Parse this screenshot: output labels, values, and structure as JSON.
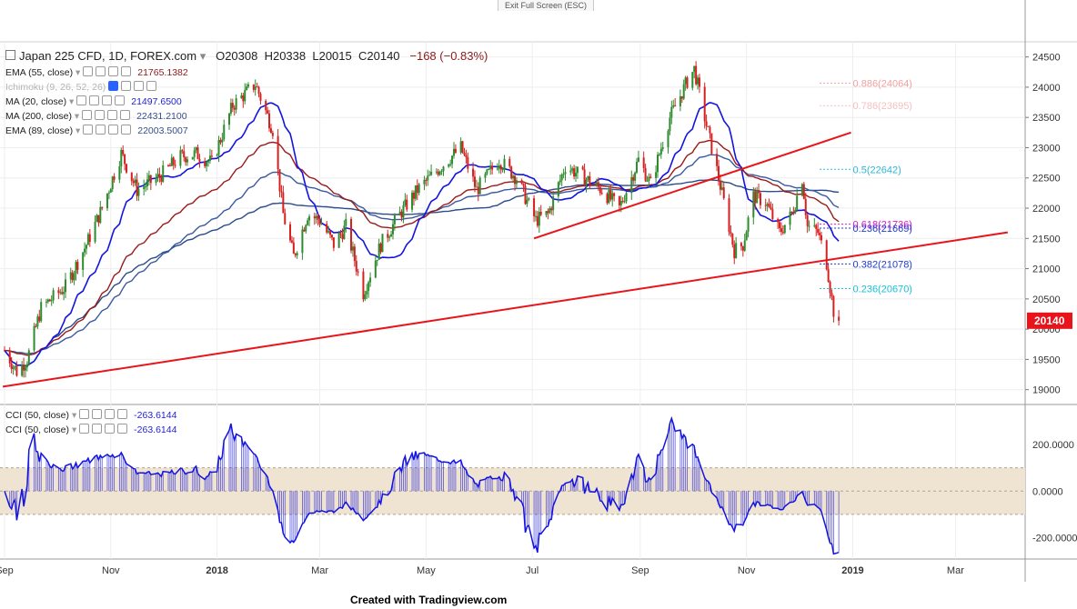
{
  "ui": {
    "exit_fullscreen": "Exit Full Screen (ESC)",
    "created_with": "Created with Tradingview.com"
  },
  "header": {
    "symbol": "Japan 225 CFD, 1D, FOREX.com",
    "open": "O20308",
    "high": "H20338",
    "low": "L20015",
    "close": "C20140",
    "change": "−168 (−0.83%)"
  },
  "indicators": [
    {
      "label": "EMA (55, close)",
      "value": "21765.1382",
      "color": "#8b1a1a"
    },
    {
      "label": "Ichimoku (9, 26, 52, 26)",
      "value": "",
      "color": "#2962ff"
    },
    {
      "label": "MA (20, close)",
      "value": "21497.6500",
      "color": "#1f1fd6"
    },
    {
      "label": "MA (200, close)",
      "value": "22431.2100",
      "color": "#34508a"
    },
    {
      "label": "EMA (89, close)",
      "value": "22003.5007",
      "color": "#34508a"
    }
  ],
  "cci_legend": [
    {
      "label": "CCI (50, close)",
      "value": "-263.6144"
    },
    {
      "label": "CCI (50, close)",
      "value": "-263.6144"
    }
  ],
  "colors": {
    "up_candle": "#2e8b2e",
    "down_candle": "#d62020",
    "trendline": "#e8141a",
    "ma20": "#1414e0",
    "ema55": "#9a1a1a",
    "ema89": "#3a5aa0",
    "ma200": "#2a4a8a",
    "cci_line": "#1414e0",
    "cci_band": "#efe4d2",
    "price_tag": "#e8141a"
  },
  "chart_data": {
    "type": "candlestick",
    "title": "Japan 225 CFD, 1D, FOREX.com",
    "x_range": [
      "2017-09-01",
      "2019-04-10"
    ],
    "x_ticks": [
      {
        "label": "Sep",
        "date": "2017-09-01"
      },
      {
        "label": "Nov",
        "date": "2017-11-01"
      },
      {
        "label": "2018",
        "date": "2018-01-01"
      },
      {
        "label": "Mar",
        "date": "2018-03-01"
      },
      {
        "label": "May",
        "date": "2018-05-01"
      },
      {
        "label": "Jul",
        "date": "2018-07-01"
      },
      {
        "label": "Sep",
        "date": "2018-09-01"
      },
      {
        "label": "Nov",
        "date": "2018-11-01"
      },
      {
        "label": "2019",
        "date": "2019-01-01"
      },
      {
        "label": "Mar",
        "date": "2019-03-01"
      }
    ],
    "y_range": [
      18800,
      24750
    ],
    "y_ticks": [
      "19000",
      "19500",
      "20000",
      "20500",
      "21000",
      "21500",
      "22000",
      "22500",
      "23000",
      "23500",
      "24000",
      "24500"
    ],
    "price_anchors": [
      [
        "2017-09-01",
        19650
      ],
      [
        "2017-09-08",
        19300
      ],
      [
        "2017-09-14",
        19500
      ],
      [
        "2017-09-22",
        20350
      ],
      [
        "2017-10-06",
        20700
      ],
      [
        "2017-10-18",
        21400
      ],
      [
        "2017-10-27",
        22000
      ],
      [
        "2017-11-07",
        22900
      ],
      [
        "2017-11-16",
        22300
      ],
      [
        "2017-11-28",
        22500
      ],
      [
        "2017-12-11",
        22850
      ],
      [
        "2017-12-20",
        22900
      ],
      [
        "2017-12-29",
        22750
      ],
      [
        "2018-01-10",
        23700
      ],
      [
        "2018-01-23",
        24050
      ],
      [
        "2018-02-02",
        23300
      ],
      [
        "2018-02-08",
        21900
      ],
      [
        "2018-02-14",
        21200
      ],
      [
        "2018-02-22",
        21900
      ],
      [
        "2018-03-01",
        21800
      ],
      [
        "2018-03-09",
        21400
      ],
      [
        "2018-03-16",
        21700
      ],
      [
        "2018-03-26",
        20600
      ],
      [
        "2018-04-05",
        21400
      ],
      [
        "2018-04-16",
        21900
      ],
      [
        "2018-04-26",
        22300
      ],
      [
        "2018-05-10",
        22700
      ],
      [
        "2018-05-21",
        23000
      ],
      [
        "2018-05-30",
        22300
      ],
      [
        "2018-06-12",
        22800
      ],
      [
        "2018-06-22",
        22500
      ],
      [
        "2018-07-03",
        21800
      ],
      [
        "2018-07-10",
        21900
      ],
      [
        "2018-07-20",
        22700
      ],
      [
        "2018-07-31",
        22500
      ],
      [
        "2018-08-10",
        22300
      ],
      [
        "2018-08-20",
        22000
      ],
      [
        "2018-08-31",
        22800
      ],
      [
        "2018-09-07",
        22400
      ],
      [
        "2018-09-18",
        23500
      ],
      [
        "2018-09-28",
        24100
      ],
      [
        "2018-10-02",
        24300
      ],
      [
        "2018-10-08",
        23500
      ],
      [
        "2018-10-16",
        22500
      ],
      [
        "2018-10-25",
        21300
      ],
      [
        "2018-10-30",
        21400
      ],
      [
        "2018-11-05",
        22200
      ],
      [
        "2018-11-12",
        22100
      ],
      [
        "2018-11-20",
        21600
      ],
      [
        "2018-11-27",
        21900
      ],
      [
        "2018-12-03",
        22500
      ],
      [
        "2018-12-06",
        21700
      ],
      [
        "2018-12-12",
        21600
      ],
      [
        "2018-12-17",
        21100
      ],
      [
        "2018-12-21",
        20300
      ],
      [
        "2018-12-24",
        20140
      ]
    ],
    "last_price": "20140",
    "trendlines": [
      {
        "from": [
          "2017-08-31",
          19050
        ],
        "to": [
          "2019-03-31",
          21600
        ]
      },
      {
        "from": [
          "2018-07-02",
          21500
        ],
        "to": [
          "2018-12-31",
          23250
        ]
      }
    ],
    "fib_levels": [
      {
        "label": "0.886(24064)",
        "value": 24064,
        "color": "#f2a0a0"
      },
      {
        "label": "0.786(23695)",
        "value": 23695,
        "color": "#f5c0c0"
      },
      {
        "label": "0.5(22642)",
        "value": 22642,
        "color": "#2ab8d8"
      },
      {
        "label": "0.618(21736)",
        "value": 21736,
        "color": "#d81ac0"
      },
      {
        "label": "0.236(21669)",
        "value": 21669,
        "color": "#1a3ad8"
      },
      {
        "label": "0.382(21078)",
        "value": 21078,
        "color": "#1a3ad8"
      },
      {
        "label": "0.236(20670)",
        "value": 20670,
        "color": "#1ac0d8"
      }
    ],
    "cci_panel": {
      "y_range": [
        -280,
        360
      ],
      "y_ticks": [
        "200.0000",
        "0.0000",
        "-200.0000"
      ],
      "band": [
        -100,
        100
      ],
      "last": -263.6144
    }
  }
}
